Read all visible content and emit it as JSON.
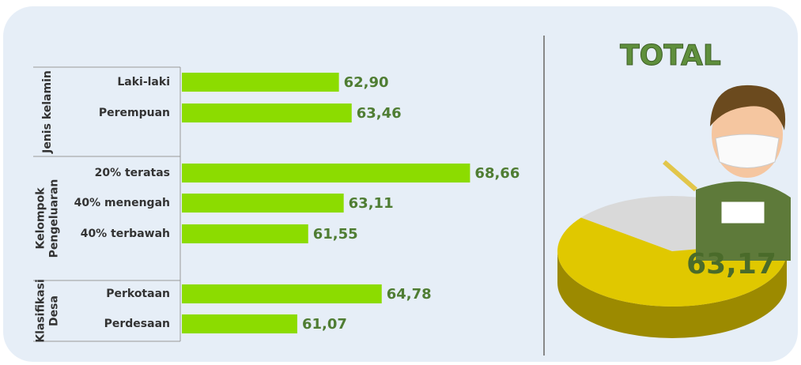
{
  "chart_data": [
    {
      "type": "bar",
      "orientation": "horizontal",
      "color": "#8cdc00",
      "xlim": [
        56,
        70
      ],
      "groups": [
        {
          "name_lines": [
            "Jenis kelamin"
          ],
          "categories": [
            "Laki-laki",
            "Perempuan"
          ],
          "values": [
            62.9,
            63.46
          ],
          "value_labels": [
            "62,90",
            "63,46"
          ]
        },
        {
          "name_lines": [
            "Kelompok",
            "Pengeluaran"
          ],
          "categories": [
            "20% teratas",
            "40% menengah",
            "40% terbawah"
          ],
          "values": [
            68.66,
            63.11,
            61.55
          ],
          "value_labels": [
            "68,66",
            "63,11",
            "61,55"
          ]
        },
        {
          "name_lines": [
            "Klasifikasi",
            "Desa"
          ],
          "categories": [
            "Perkotaan",
            "Perdesaan"
          ],
          "values": [
            64.78,
            61.07
          ],
          "value_labels": [
            "64,78",
            "61,07"
          ]
        }
      ]
    },
    {
      "type": "pie",
      "title": "TOTAL",
      "values": [
        63.17
      ],
      "value_labels": [
        "63,17"
      ],
      "color": "#e0c800"
    }
  ]
}
